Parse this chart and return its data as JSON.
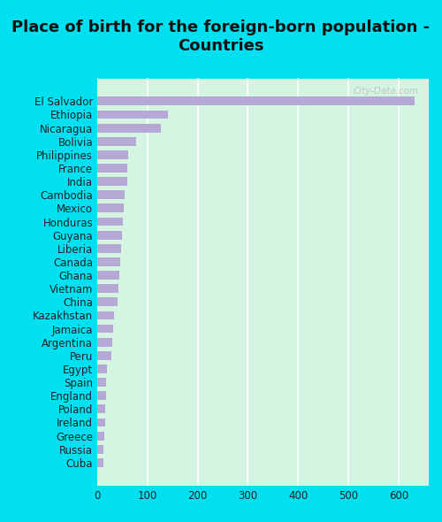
{
  "title": "Place of birth for the foreign-born population -\nCountries",
  "categories": [
    "El Salvador",
    "Ethiopia",
    "Nicaragua",
    "Bolivia",
    "Philippines",
    "France",
    "India",
    "Cambodia",
    "Mexico",
    "Honduras",
    "Guyana",
    "Liberia",
    "Canada",
    "Ghana",
    "Vietnam",
    "China",
    "Kazakhstan",
    "Jamaica",
    "Argentina",
    "Peru",
    "Egypt",
    "Spain",
    "England",
    "Poland",
    "Ireland",
    "Greece",
    "Russia",
    "Cuba"
  ],
  "values": [
    631,
    141,
    127,
    78,
    62,
    60,
    59,
    55,
    53,
    51,
    49,
    47,
    45,
    44,
    42,
    40,
    33,
    32,
    30,
    28,
    20,
    18,
    17,
    16,
    15,
    14,
    13,
    12
  ],
  "bar_color": "#b5a8d5",
  "background_color": "#d5f5e3",
  "outer_background": "#00e0f0",
  "title_fontsize": 13,
  "tick_fontsize": 8.5,
  "xlim": [
    0,
    660
  ],
  "xticks": [
    0,
    100,
    200,
    300,
    400,
    500,
    600
  ],
  "watermark": "City-Data.com"
}
